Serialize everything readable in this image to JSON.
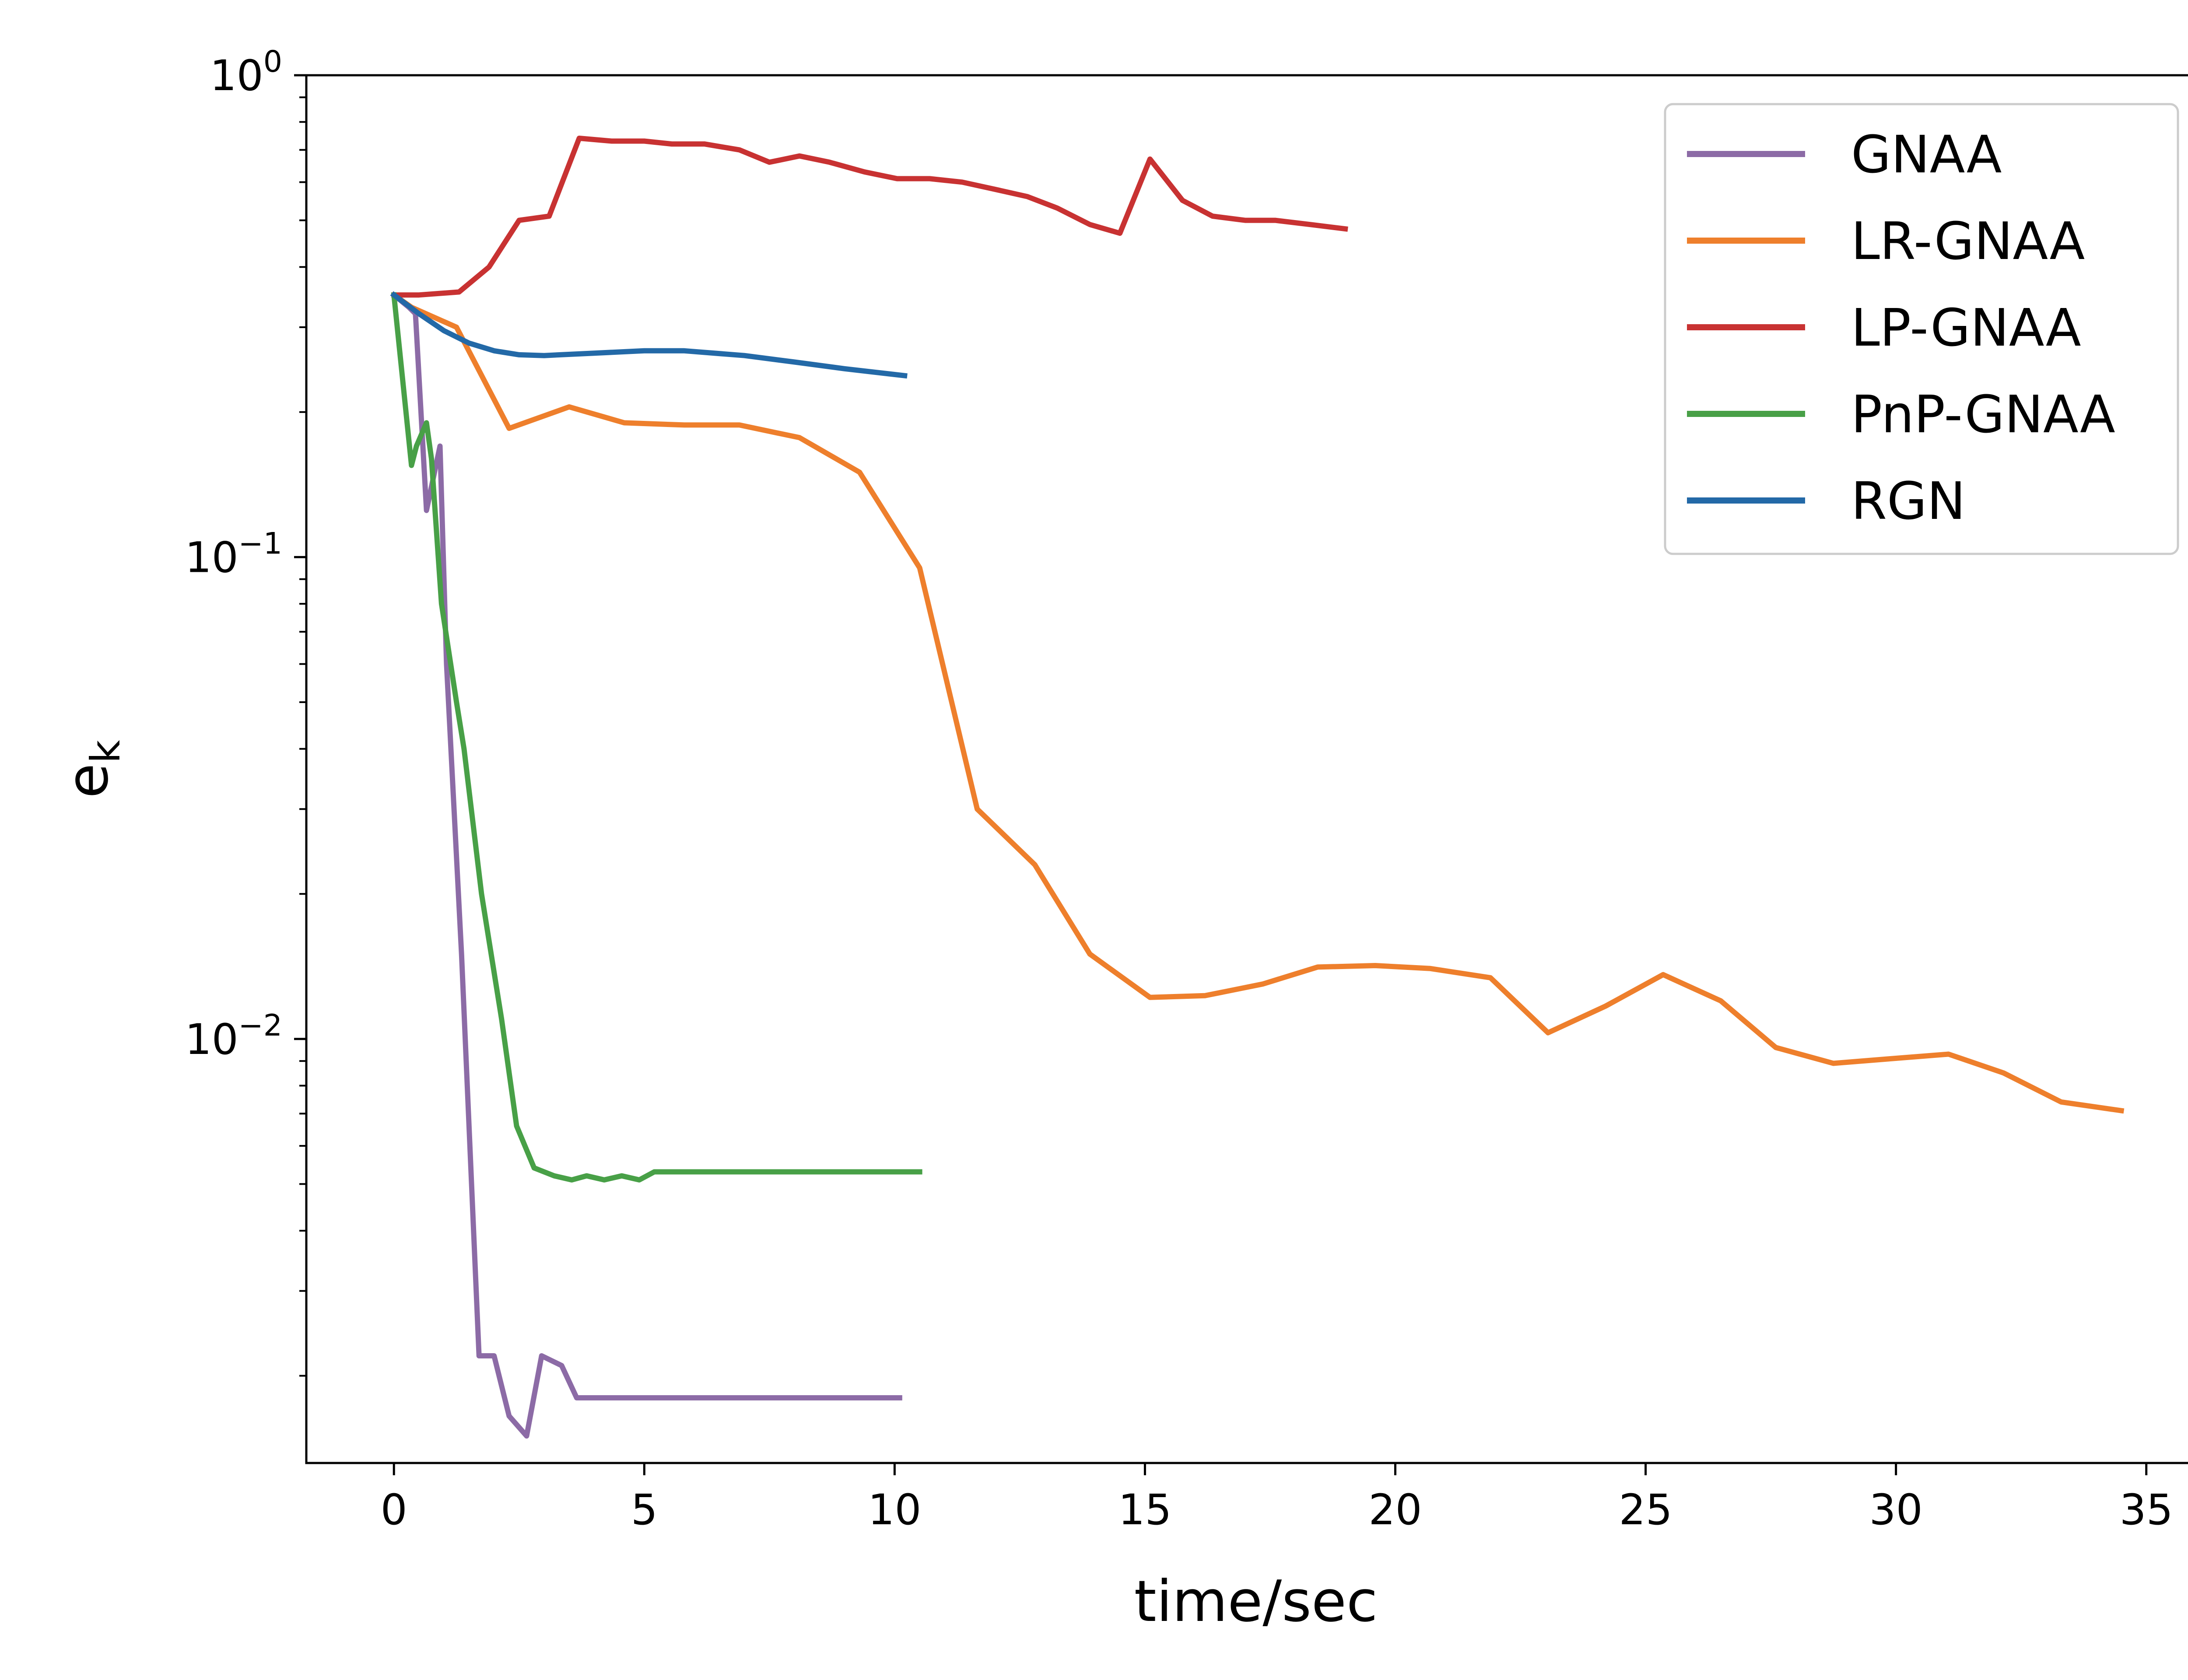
{
  "chart_data": {
    "type": "line",
    "title": "",
    "xlabel": "time/sec",
    "ylabel_main": "e",
    "ylabel_sub": "k",
    "yscale": "log",
    "xlim": [
      -1.75,
      36.2
    ],
    "ylim_exp": [
      -2.88,
      0
    ],
    "x_ticks": [
      0,
      5,
      10,
      15,
      20,
      25,
      30,
      35
    ],
    "x_tick_labels": [
      "0",
      "5",
      "10",
      "15",
      "20",
      "25",
      "30",
      "35"
    ],
    "y_ticks": [
      {
        "value": 1,
        "base": "10",
        "exp": "0"
      },
      {
        "value": 0.1,
        "base": "10",
        "exp": "−1"
      },
      {
        "value": 0.01,
        "base": "10",
        "exp": "−2"
      }
    ],
    "legend_position": "top-right",
    "series": [
      {
        "name": "GNAA",
        "color": "#8c6ba6",
        "x": [
          0,
          0.3,
          0.43,
          0.65,
          0.92,
          1.05,
          1.35,
          1.7,
          2.0,
          2.3,
          2.65,
          2.95,
          3.35,
          3.65,
          5,
          7,
          10.1
        ],
        "y": [
          0.35,
          0.33,
          0.32,
          0.125,
          0.17,
          0.06,
          0.015,
          0.0022,
          0.0022,
          0.00165,
          0.0015,
          0.0022,
          0.0021,
          0.0018,
          0.0018,
          0.0018,
          0.0018
        ]
      },
      {
        "name": "LR-GNAA",
        "color": "#ee7f2c",
        "x": [
          0,
          0.35,
          1.25,
          2.3,
          3.5,
          4.6,
          5.8,
          6.9,
          8.1,
          9.3,
          10.5,
          11.65,
          12.8,
          13.9,
          15.1,
          16.2,
          17.35,
          18.45,
          19.6,
          20.7,
          21.9,
          23.05,
          24.2,
          25.35,
          26.5,
          27.6,
          28.75,
          29.9,
          31.05,
          32.15,
          33.3,
          34.5
        ],
        "y": [
          0.35,
          0.33,
          0.3,
          0.185,
          0.205,
          0.19,
          0.188,
          0.188,
          0.177,
          0.15,
          0.095,
          0.03,
          0.023,
          0.015,
          0.0122,
          0.0123,
          0.013,
          0.0141,
          0.0142,
          0.014,
          0.0134,
          0.0103,
          0.0117,
          0.0136,
          0.012,
          0.0096,
          0.0089,
          0.0091,
          0.0093,
          0.0085,
          0.0074,
          0.0071
        ]
      },
      {
        "name": "LP-GNAA",
        "color": "#c83232",
        "x": [
          0,
          0.5,
          1.3,
          1.9,
          2.5,
          3.1,
          3.7,
          4.35,
          5,
          5.55,
          6.2,
          6.9,
          7.5,
          8.1,
          8.7,
          9.4,
          10.05,
          10.7,
          11.35,
          12,
          12.65,
          13.25,
          13.9,
          14.5,
          15.1,
          15.75,
          16.35,
          17,
          17.6,
          18.3,
          19.0
        ],
        "y": [
          0.35,
          0.35,
          0.355,
          0.4,
          0.5,
          0.51,
          0.74,
          0.73,
          0.73,
          0.72,
          0.72,
          0.7,
          0.66,
          0.68,
          0.66,
          0.63,
          0.61,
          0.61,
          0.6,
          0.58,
          0.56,
          0.53,
          0.49,
          0.47,
          0.67,
          0.55,
          0.51,
          0.5,
          0.5,
          0.49,
          0.48
        ]
      },
      {
        "name": "PnP-GNAA",
        "color": "#48a047",
        "x": [
          0,
          0.35,
          0.45,
          0.65,
          0.75,
          0.95,
          1.25,
          1.4,
          1.75,
          2.15,
          2.45,
          2.8,
          3.2,
          3.55,
          3.85,
          4.2,
          4.55,
          4.9,
          5.2,
          7,
          10.5
        ],
        "y": [
          0.35,
          0.155,
          0.17,
          0.19,
          0.16,
          0.08,
          0.05,
          0.04,
          0.02,
          0.011,
          0.0066,
          0.0054,
          0.0052,
          0.0051,
          0.0052,
          0.0051,
          0.0052,
          0.0051,
          0.0053,
          0.0053,
          0.0053
        ]
      },
      {
        "name": "RGN",
        "color": "#2369a7",
        "x": [
          0,
          0.5,
          1,
          1.5,
          2,
          2.5,
          3,
          4,
          5,
          5.8,
          7,
          8,
          9,
          10.2
        ],
        "y": [
          0.35,
          0.32,
          0.295,
          0.278,
          0.268,
          0.263,
          0.262,
          0.265,
          0.268,
          0.268,
          0.262,
          0.254,
          0.246,
          0.238
        ]
      }
    ]
  }
}
